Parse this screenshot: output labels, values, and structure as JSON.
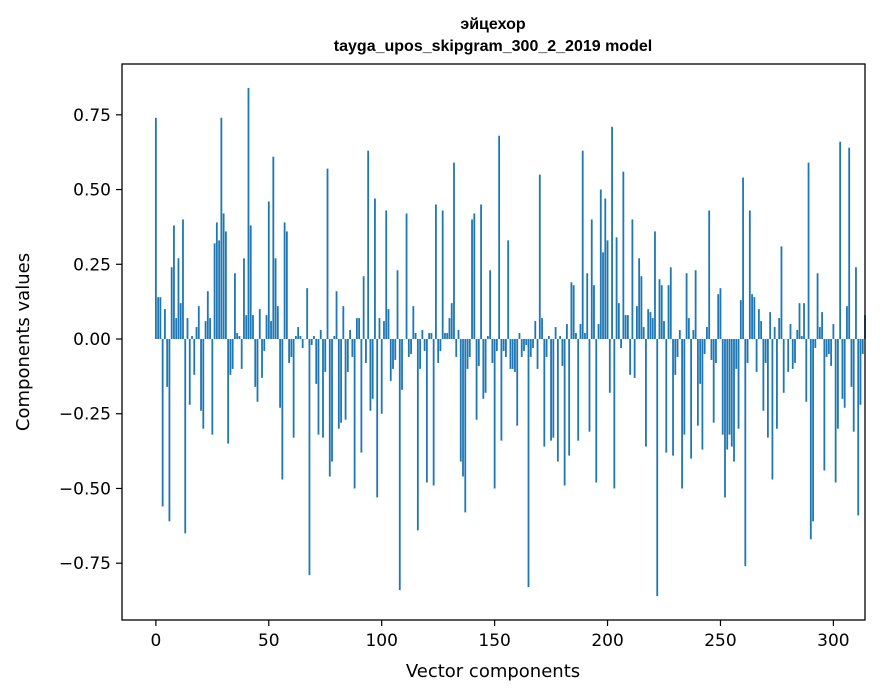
{
  "chart_data": {
    "type": "bar",
    "title": "эйцехор",
    "subtitle": "tayga_upos_skipgram_300_2_2019 model",
    "xlabel": "Vector components",
    "ylabel": "Components values",
    "xlim": [
      -15,
      314
    ],
    "ylim": [
      -0.94,
      0.92
    ],
    "x_ticks": [
      0,
      50,
      100,
      150,
      200,
      250,
      300
    ],
    "x_tick_labels": [
      "0",
      "50",
      "100",
      "150",
      "200",
      "250",
      "300"
    ],
    "y_ticks": [
      0.75,
      0.5,
      0.25,
      0.0,
      -0.25,
      -0.5,
      -0.75
    ],
    "y_tick_labels": [
      "0.75",
      "0.50",
      "0.25",
      "0.00",
      "−0.25",
      "−0.50",
      "−0.75"
    ],
    "grid": false,
    "bar_color": "#1f77b4",
    "values": [
      0.74,
      0.14,
      0.14,
      -0.56,
      0.1,
      -0.16,
      -0.61,
      0.24,
      0.38,
      0.07,
      0.27,
      0.12,
      0.4,
      -0.65,
      0.07,
      -0.22,
      0.01,
      -0.12,
      0.04,
      0.11,
      -0.24,
      -0.3,
      0.06,
      0.16,
      0.07,
      -0.32,
      0.32,
      0.39,
      0.33,
      0.74,
      0.42,
      0.36,
      -0.35,
      -0.12,
      -0.1,
      0.22,
      0.02,
      0.01,
      -0.1,
      0.27,
      0.08,
      0.84,
      0.38,
      0.08,
      -0.16,
      -0.21,
      0.1,
      -0.13,
      -0.04,
      0.08,
      0.46,
      0.06,
      0.61,
      0.27,
      0.11,
      -0.23,
      -0.47,
      0.39,
      0.36,
      -0.08,
      -0.06,
      -0.33,
      0.01,
      0.04,
      0.01,
      -0.03,
      0.0,
      0.17,
      -0.79,
      -0.02,
      0.01,
      -0.15,
      -0.32,
      0.03,
      -0.33,
      -0.11,
      0.57,
      -0.46,
      -0.41,
      0.01,
      0.16,
      -0.3,
      -0.28,
      0.11,
      -0.27,
      -0.11,
      0.03,
      -0.06,
      -0.5,
      0.07,
      0.07,
      -0.38,
      0.21,
      -0.08,
      0.63,
      -0.24,
      -0.2,
      0.47,
      -0.53,
      0.07,
      -0.25,
      0.06,
      0.43,
      0.1,
      -0.14,
      -0.1,
      -0.07,
      0.23,
      -0.84,
      -0.17,
      0.0,
      0.42,
      -0.06,
      -0.05,
      0.11,
      0.02,
      -0.64,
      -0.1,
      0.03,
      -0.04,
      -0.48,
      0.02,
      0.02,
      -0.49,
      0.45,
      -0.08,
      -0.04,
      0.43,
      0.02,
      0.02,
      0.07,
      0.12,
      0.59,
      -0.06,
      0.03,
      -0.41,
      -0.46,
      -0.58,
      -0.1,
      -0.06,
      0.4,
      0.42,
      -0.27,
      -0.09,
      0.45,
      -0.2,
      -0.18,
      0.01,
      0.23,
      -0.08,
      -0.5,
      -0.04,
      0.68,
      -0.34,
      -0.04,
      -0.06,
      0.33,
      -0.1,
      -0.1,
      -0.11,
      -0.29,
      0.02,
      -0.06,
      -0.04,
      -0.02,
      -0.83,
      -0.06,
      -0.03,
      0.06,
      -0.1,
      0.55,
      0.07,
      -0.36,
      -0.06,
      0.01,
      -0.34,
      -0.33,
      0.04,
      -0.41,
      0.01,
      -0.09,
      -0.49,
      0.05,
      -0.39,
      0.19,
      0.18,
      0.02,
      -0.34,
      0.05,
      0.63,
      0.02,
      0.22,
      -0.31,
      0.4,
      0.18,
      -0.48,
      0.05,
      0.5,
      0.29,
      0.47,
      0.33,
      -0.18,
      0.71,
      -0.5,
      0.34,
      0.12,
      -0.03,
      0.56,
      0.08,
      0.08,
      -0.12,
      0.4,
      -0.13,
      0.11,
      0.27,
      0.21,
      0.04,
      -0.36,
      0.1,
      0.09,
      0.07,
      0.36,
      -0.86,
      0.2,
      0.18,
      0.06,
      -0.38,
      0.18,
      0.24,
      -0.39,
      -0.12,
      -0.06,
      0.03,
      -0.5,
      -0.32,
      0.22,
      0.07,
      -0.4,
      0.03,
      0.23,
      -0.29,
      -0.15,
      -0.37,
      -0.05,
      0.04,
      0.43,
      -0.07,
      -0.28,
      -0.08,
      0.15,
      0.17,
      -0.32,
      -0.53,
      -0.37,
      -0.32,
      -0.36,
      -0.41,
      -0.1,
      -0.3,
      0.13,
      0.54,
      -0.76,
      -0.08,
      0.43,
      0.15,
      0.14,
      -0.11,
      0.1,
      0.06,
      -0.24,
      -0.08,
      -0.33,
      0.09,
      -0.47,
      0.04,
      -0.3,
      0.07,
      0.31,
      -0.18,
      0.0,
      -0.11,
      0.05,
      -0.1,
      -0.08,
      0.03,
      0.12,
      0.01,
      0.12,
      -0.21,
      0.59,
      -0.67,
      -0.61,
      -0.03,
      0.22,
      0.04,
      0.09,
      -0.44,
      -0.06,
      -0.05,
      -0.09,
      0.05,
      -0.48,
      -0.3,
      0.66,
      -0.2,
      -0.23,
      0.11,
      0.64,
      -0.16,
      -0.31,
      0.24,
      -0.59,
      -0.22,
      -0.05,
      0.08
    ]
  }
}
